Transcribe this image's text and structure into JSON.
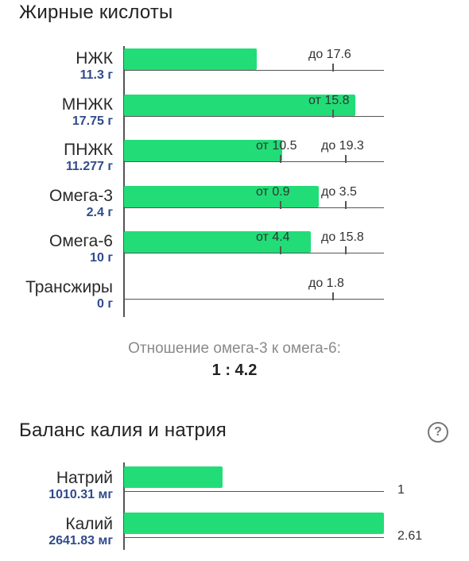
{
  "fatty_acids": {
    "title": "Жирные кислоты",
    "rows": [
      {
        "name": "НЖК",
        "amount": "11.3 г",
        "fill_fraction": 0.51,
        "ticks": [
          {
            "label": "до 17.6",
            "pos": 0.8
          }
        ]
      },
      {
        "name": "МНЖК",
        "amount": "17.75 г",
        "fill_fraction": 0.89,
        "ticks": [
          {
            "label": "от 15.8",
            "pos": 0.8
          }
        ]
      },
      {
        "name": "ПНЖК",
        "amount": "11.277 г",
        "fill_fraction": 0.61,
        "ticks": [
          {
            "label": "от 10.5",
            "pos": 0.6
          },
          {
            "label": "до 19.3",
            "pos": 0.85
          }
        ]
      },
      {
        "name": "Омега-3",
        "amount": "2.4 г",
        "fill_fraction": 0.75,
        "ticks": [
          {
            "label": "от 0.9",
            "pos": 0.6
          },
          {
            "label": "до 3.5",
            "pos": 0.85
          }
        ]
      },
      {
        "name": "Омега-6",
        "amount": "10 г",
        "fill_fraction": 0.72,
        "ticks": [
          {
            "label": "от 4.4",
            "pos": 0.6
          },
          {
            "label": "до 15.8",
            "pos": 0.85
          }
        ]
      },
      {
        "name": "Трансжиры",
        "amount": "0 г",
        "fill_fraction": 0,
        "ticks": [
          {
            "label": "до 1.8",
            "pos": 0.8
          }
        ]
      }
    ],
    "ratio_title": "Отношение омега-3 к омега-6:",
    "ratio_value": "1 : 4.2"
  },
  "balance": {
    "title": "Баланс калия и натрия",
    "help_icon": "question-circle-icon",
    "rows": [
      {
        "name": "Натрий",
        "amount": "1010.31 мг",
        "fill_fraction": 0.38,
        "scale_label": "1"
      },
      {
        "name": "Калий",
        "amount": "2641.83 мг",
        "fill_fraction": 1.0,
        "scale_label": "2.61"
      }
    ]
  },
  "colors": {
    "bar_fill": "#22dd77",
    "amount_text": "#2f4b8c",
    "axis": "#555555"
  }
}
